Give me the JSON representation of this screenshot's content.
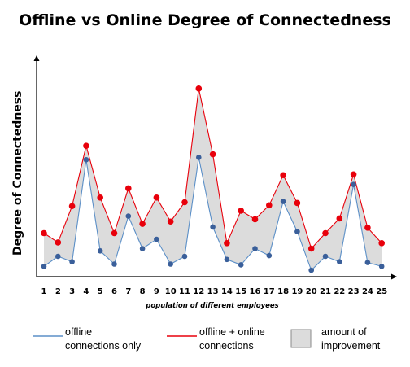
{
  "chart_data": {
    "type": "line",
    "title": "Offline vs Online Degree of Connectedness",
    "xlabel": "population of different employees",
    "ylabel": "Degree of Connectedness",
    "categories": [
      "1",
      "2",
      "3",
      "4",
      "5",
      "6",
      "7",
      "8",
      "9",
      "10",
      "11",
      "12",
      "13",
      "14",
      "15",
      "16",
      "17",
      "18",
      "19",
      "20",
      "21",
      "22",
      "23",
      "24",
      "25"
    ],
    "series": [
      {
        "name": "offline connections only",
        "color": "#3a5f9a",
        "line_color": "#5b8fc7",
        "values": [
          0.7,
          2.0,
          1.3,
          14.5,
          2.7,
          1.0,
          7.2,
          3.0,
          4.2,
          1.0,
          2.0,
          14.8,
          5.8,
          1.6,
          0.9,
          3.0,
          2.1,
          9.1,
          5.2,
          0.2,
          2.0,
          1.3,
          11.3,
          1.2,
          0.7
        ]
      },
      {
        "name": "offline + online connections",
        "color": "#e8000b",
        "line_color": "#e8000b",
        "values": [
          5.0,
          3.8,
          8.5,
          16.3,
          9.6,
          5.0,
          10.8,
          6.2,
          9.6,
          6.5,
          9.0,
          23.7,
          15.2,
          3.7,
          7.9,
          6.8,
          8.6,
          12.5,
          8.9,
          3.0,
          5.0,
          6.9,
          12.6,
          5.7,
          3.7
        ]
      }
    ],
    "ylim": [
      0,
      26
    ],
    "grid": false,
    "legend_position": "bottom",
    "fill_between": {
      "label": "amount of improvement",
      "color": "#dcdcdc"
    }
  },
  "legend": {
    "offline_line1": "offline",
    "offline_line2": "connections only",
    "combined_line1": "offline + online",
    "combined_line2": "connections",
    "improvement_line1": "amount of",
    "improvement_line2": "improvement"
  }
}
